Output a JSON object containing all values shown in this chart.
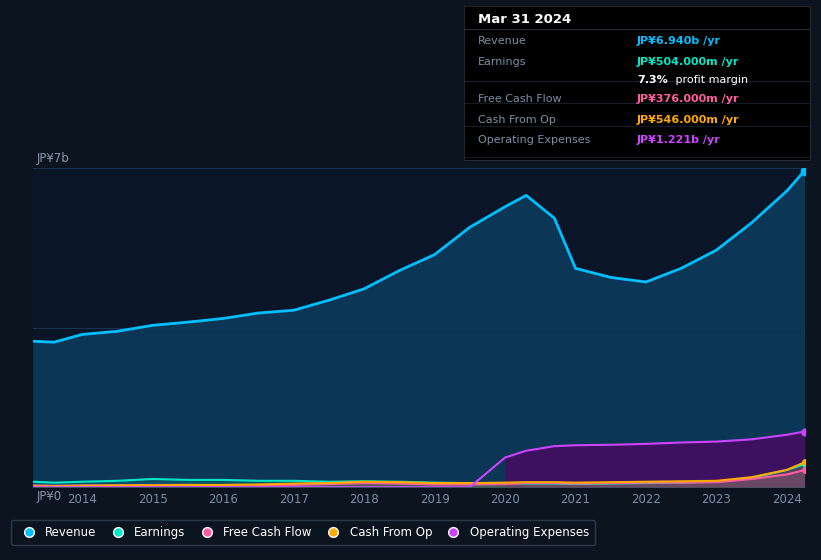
{
  "bg_color": "#0c1420",
  "plot_bg_color": "#0a1628",
  "ylabel_top": "JP¥7b",
  "ylabel_bottom": "JP¥0",
  "x_years": [
    2013.3,
    2013.6,
    2014.0,
    2014.5,
    2015.0,
    2015.5,
    2016.0,
    2016.5,
    2017.0,
    2017.5,
    2018.0,
    2018.5,
    2019.0,
    2019.5,
    2020.0,
    2020.3,
    2020.7,
    2021.0,
    2021.5,
    2022.0,
    2022.5,
    2023.0,
    2023.5,
    2024.0,
    2024.25
  ],
  "revenue": [
    3.2,
    3.18,
    3.35,
    3.42,
    3.55,
    3.62,
    3.7,
    3.82,
    3.88,
    4.1,
    4.35,
    4.75,
    5.1,
    5.7,
    6.15,
    6.4,
    5.9,
    4.8,
    4.6,
    4.5,
    4.8,
    5.2,
    5.8,
    6.5,
    6.94
  ],
  "earnings": [
    0.12,
    0.1,
    0.12,
    0.14,
    0.18,
    0.16,
    0.16,
    0.14,
    0.14,
    0.12,
    0.13,
    0.12,
    0.1,
    0.09,
    0.09,
    0.08,
    0.08,
    0.07,
    0.08,
    0.09,
    0.1,
    0.12,
    0.2,
    0.38,
    0.504
  ],
  "free_cash_flow": [
    0.04,
    0.03,
    0.04,
    0.04,
    0.05,
    0.05,
    0.04,
    0.04,
    0.05,
    0.07,
    0.09,
    0.08,
    0.06,
    0.06,
    0.07,
    0.09,
    0.09,
    0.08,
    0.09,
    0.1,
    0.1,
    0.11,
    0.18,
    0.28,
    0.376
  ],
  "cash_from_op": [
    0.02,
    0.02,
    0.03,
    0.04,
    0.04,
    0.05,
    0.05,
    0.06,
    0.08,
    0.09,
    0.12,
    0.11,
    0.09,
    0.09,
    0.1,
    0.11,
    0.11,
    0.1,
    0.11,
    0.12,
    0.13,
    0.14,
    0.22,
    0.38,
    0.546
  ],
  "operating_expenses": [
    0.0,
    0.0,
    0.0,
    0.0,
    0.0,
    0.0,
    0.0,
    0.0,
    0.0,
    0.0,
    0.0,
    0.0,
    0.0,
    0.0,
    0.65,
    0.8,
    0.9,
    0.92,
    0.93,
    0.95,
    0.98,
    1.0,
    1.05,
    1.15,
    1.221
  ],
  "revenue_color": "#00bfff",
  "earnings_color": "#00e8c8",
  "free_cash_flow_color": "#ff5f9e",
  "cash_from_op_color": "#ffaa00",
  "operating_expenses_color": "#cc44ff",
  "operating_expenses_fill": "#3d1060",
  "revenue_fill_color": "#0d3a5c",
  "x_ticks": [
    2014,
    2015,
    2016,
    2017,
    2018,
    2019,
    2020,
    2021,
    2022,
    2023,
    2024
  ],
  "grid_color": "#1a3a5c",
  "tooltip": {
    "date": "Mar 31 2024",
    "revenue_label": "Revenue",
    "revenue_text": "JP¥6.940b",
    "earnings_label": "Earnings",
    "earnings_text": "JP¥504.000m",
    "profit_pct": "7.3%",
    "profit_rest": " profit margin",
    "fcf_label": "Free Cash Flow",
    "fcf_text": "JP¥376.000m",
    "cfo_label": "Cash From Op",
    "cfo_text": "JP¥546.000m",
    "opex_label": "Operating Expenses",
    "opex_text": "JP¥1.221b"
  },
  "legend": [
    "Revenue",
    "Earnings",
    "Free Cash Flow",
    "Cash From Op",
    "Operating Expenses"
  ]
}
